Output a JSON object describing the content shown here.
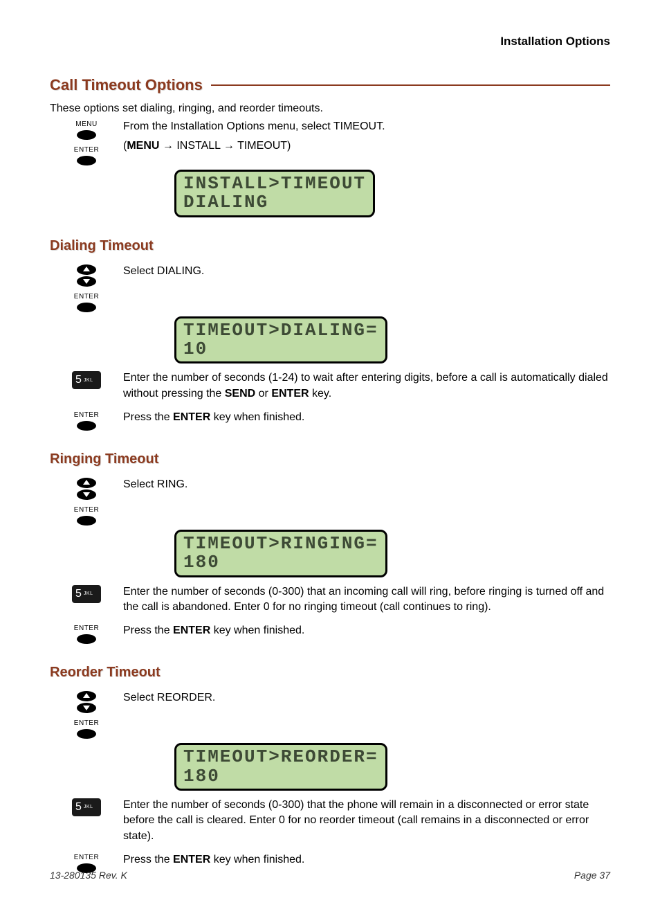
{
  "header_right": "Installation Options",
  "h1": "Call Timeout Options",
  "intro": "These options set dialing, ringing, and reorder timeouts.",
  "menu_label": "MENU",
  "enter_label": "ENTER",
  "numkey_digit": "5",
  "numkey_letters": "JKL",
  "step_intro_1": "From the Installation Options menu, select TIMEOUT.",
  "step_intro_2a": "(",
  "step_intro_2b": " → INSTALL → TIMEOUT)",
  "bold_menu": "MENU",
  "bold_send": "SEND",
  "bold_enter": "ENTER",
  "lcd_main_l1": "INSTALL>TIMEOUT",
  "lcd_main_l2": "DIALING",
  "sec_dialing_h": "Dialing Timeout",
  "sec_dialing_s1": "Select DIALING.",
  "lcd_dialing_l1": "TIMEOUT>DIALING=",
  "lcd_dialing_l2": "10",
  "sec_dialing_s2a": "Enter the number of seconds (1-24) to wait after entering digits, before a call is automatically dialed without pressing the ",
  "sec_dialing_s2b": " or ",
  "sec_dialing_s2c": " key.",
  "press_enter_a": "Press the ",
  "press_enter_b": " key when finished.",
  "sec_ringing_h": "Ringing Timeout",
  "sec_ringing_s1": "Select RING.",
  "lcd_ringing_l1": "TIMEOUT>RINGING=",
  "lcd_ringing_l2": "180",
  "sec_ringing_s2": "Enter the number of seconds (0-300) that an incoming call will ring, before ringing is turned off and the call is abandoned. Enter 0 for no ringing timeout (call continues to ring).",
  "sec_reorder_h": "Reorder Timeout",
  "sec_reorder_s1": "Select REORDER.",
  "lcd_reorder_l1": "TIMEOUT>REORDER=",
  "lcd_reorder_l2": "180",
  "sec_reorder_s2": "Enter the number of seconds (0-300) that the phone will remain in a disconnected or error state before the call is cleared. Enter 0 for no reorder timeout (call remains in a disconnected or error state).",
  "footer_left": "13-280135  Rev. K",
  "footer_right": "Page 37",
  "colors": {
    "heading": "#8b3a1f",
    "lcd_bg": "#c0dca6",
    "lcd_border": "#000000",
    "lcd_text": "#3d4a35"
  }
}
